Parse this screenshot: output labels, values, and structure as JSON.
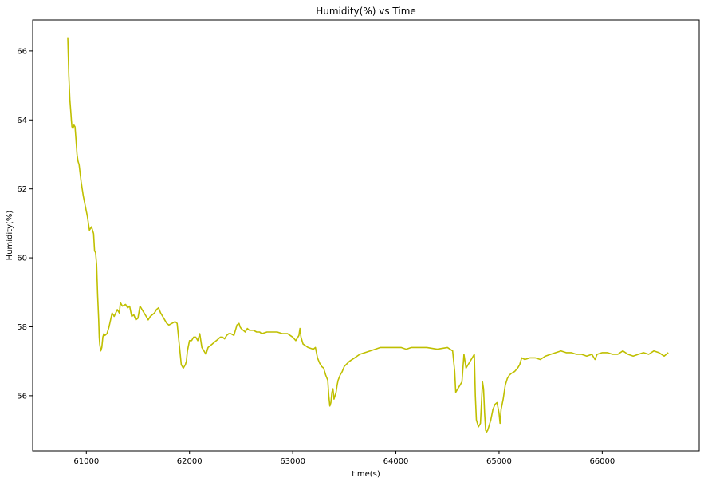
{
  "chart_data": {
    "type": "line",
    "title": "Humidity(%) vs Time",
    "xlabel": "time(s)",
    "ylabel": "Humidity(%)",
    "xlim": [
      60480,
      66940
    ],
    "ylim": [
      54.4,
      66.9
    ],
    "xticks": [
      61000,
      62000,
      63000,
      64000,
      65000,
      66000
    ],
    "yticks": [
      56,
      58,
      60,
      62,
      64,
      66
    ],
    "grid": false,
    "color": "#bfbf00",
    "series": [
      {
        "x": [
          60820,
          60825,
          60830,
          60840,
          60850,
          60855,
          60860,
          60870,
          60880,
          60890,
          60900,
          60910,
          60920,
          60930,
          60950,
          60970,
          60990,
          61010,
          61030,
          61050,
          61070,
          61080,
          61090,
          61100,
          61110,
          61120,
          61125,
          61130,
          61140,
          61150,
          61160,
          61170,
          61180,
          61200,
          61220,
          61250,
          61270,
          61300,
          61320,
          61330,
          61350,
          61380,
          61400,
          61420,
          61440,
          61460,
          61480,
          61500,
          61520,
          61540,
          61560,
          61580,
          61600,
          61620,
          61640,
          61660,
          61680,
          61700,
          61720,
          61740,
          61760,
          61780,
          61800,
          61830,
          61860,
          61880,
          61900,
          61920,
          61940,
          61960,
          61970,
          61980,
          62000,
          62020,
          62040,
          62060,
          62080,
          62100,
          62120,
          62140,
          62160,
          62170,
          62180,
          62200,
          62220,
          62240,
          62260,
          62280,
          62300,
          62320,
          62340,
          62360,
          62380,
          62400,
          62430,
          62460,
          62480,
          62490,
          62500,
          62520,
          62540,
          62560,
          62580,
          62600,
          62620,
          62650,
          62680,
          62700,
          62750,
          62800,
          62850,
          62900,
          62950,
          63000,
          63030,
          63060,
          63070,
          63080,
          63100,
          63150,
          63200,
          63220,
          63240,
          63260,
          63280,
          63300,
          63320,
          63340,
          63350,
          63360,
          63370,
          63380,
          63390,
          63400,
          63410,
          63420,
          63430,
          63440,
          63460,
          63480,
          63500,
          63550,
          63600,
          63650,
          63700,
          63750,
          63800,
          63850,
          63900,
          63950,
          64000,
          64050,
          64100,
          64150,
          64200,
          64300,
          64400,
          64500,
          64550,
          64560,
          64570,
          64580,
          64600,
          64620,
          64640,
          64660,
          64680,
          64700,
          64720,
          64740,
          64760,
          64770,
          64780,
          64800,
          64820,
          64830,
          64840,
          64850,
          64860,
          64870,
          64880,
          64890,
          64900,
          64920,
          64940,
          64960,
          64980,
          65000,
          65010,
          65020,
          65040,
          65060,
          65080,
          65100,
          65120,
          65150,
          65180,
          65200,
          65220,
          65250,
          65300,
          65350,
          65400,
          65450,
          65500,
          65550,
          65600,
          65650,
          65700,
          65750,
          65800,
          65850,
          65900,
          65930,
          65950,
          66000,
          66050,
          66100,
          66150,
          66200,
          66250,
          66300,
          66350,
          66400,
          66450,
          66500,
          66550,
          66600,
          66640
        ],
        "y": [
          66.4,
          65.9,
          65.3,
          64.6,
          64.2,
          64.0,
          63.8,
          63.75,
          63.85,
          63.8,
          63.4,
          63.0,
          62.8,
          62.7,
          62.2,
          61.8,
          61.5,
          61.2,
          60.8,
          60.9,
          60.7,
          60.2,
          60.15,
          59.8,
          58.9,
          58.2,
          57.7,
          57.5,
          57.3,
          57.4,
          57.7,
          57.8,
          57.75,
          57.8,
          58.0,
          58.4,
          58.3,
          58.5,
          58.4,
          58.7,
          58.6,
          58.65,
          58.55,
          58.6,
          58.3,
          58.35,
          58.2,
          58.25,
          58.6,
          58.5,
          58.4,
          58.3,
          58.2,
          58.3,
          58.35,
          58.4,
          58.5,
          58.55,
          58.4,
          58.3,
          58.2,
          58.1,
          58.05,
          58.1,
          58.15,
          58.1,
          57.5,
          56.9,
          56.8,
          56.9,
          57.0,
          57.3,
          57.6,
          57.6,
          57.7,
          57.7,
          57.6,
          57.8,
          57.4,
          57.3,
          57.2,
          57.3,
          57.4,
          57.45,
          57.5,
          57.55,
          57.6,
          57.65,
          57.7,
          57.7,
          57.65,
          57.75,
          57.8,
          57.8,
          57.75,
          58.05,
          58.1,
          58.0,
          57.95,
          57.9,
          57.85,
          57.95,
          57.9,
          57.9,
          57.9,
          57.85,
          57.85,
          57.8,
          57.85,
          57.85,
          57.85,
          57.8,
          57.8,
          57.7,
          57.6,
          57.75,
          57.95,
          57.7,
          57.5,
          57.4,
          57.35,
          57.4,
          57.1,
          56.95,
          56.85,
          56.8,
          56.6,
          56.45,
          56.0,
          55.7,
          55.8,
          56.1,
          56.2,
          55.9,
          56.0,
          56.1,
          56.3,
          56.45,
          56.6,
          56.7,
          56.85,
          57.0,
          57.1,
          57.2,
          57.25,
          57.3,
          57.35,
          57.4,
          57.4,
          57.4,
          57.4,
          57.4,
          57.35,
          57.4,
          57.4,
          57.4,
          57.35,
          57.4,
          57.3,
          57.0,
          56.7,
          56.1,
          56.2,
          56.3,
          56.4,
          57.2,
          56.8,
          56.9,
          57.0,
          57.1,
          57.2,
          56.0,
          55.3,
          55.1,
          55.2,
          55.8,
          56.4,
          56.2,
          55.5,
          55.0,
          54.95,
          55.0,
          55.1,
          55.3,
          55.6,
          55.75,
          55.8,
          55.5,
          55.2,
          55.6,
          55.9,
          56.3,
          56.5,
          56.6,
          56.65,
          56.7,
          56.8,
          56.9,
          57.1,
          57.05,
          57.1,
          57.1,
          57.05,
          57.15,
          57.2,
          57.25,
          57.3,
          57.25,
          57.25,
          57.2,
          57.2,
          57.15,
          57.2,
          57.05,
          57.2,
          57.25,
          57.25,
          57.2,
          57.2,
          57.3,
          57.2,
          57.15,
          57.2,
          57.25,
          57.2,
          57.3,
          57.25,
          57.15,
          57.25
        ]
      }
    ]
  }
}
